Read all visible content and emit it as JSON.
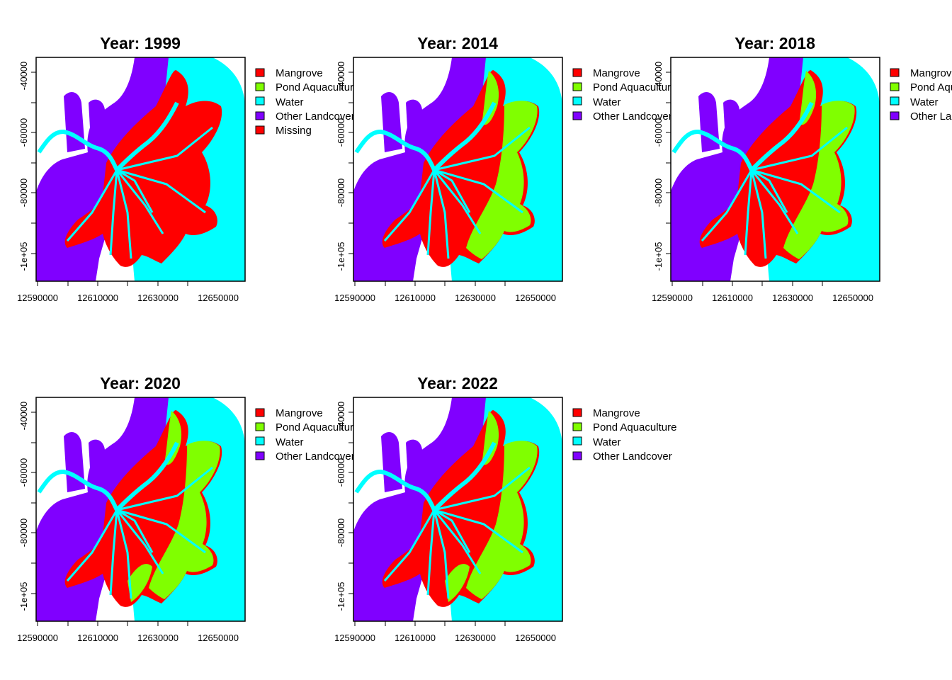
{
  "figure": {
    "x_ticks": [
      "12590000",
      "12610000",
      "12630000",
      "12650000"
    ],
    "y_ticks": [
      "-40000",
      "-60000",
      "-80000",
      "-1e+05"
    ],
    "panels": [
      {
        "title": "Year: 1999",
        "legend": [
          {
            "label": "Mangrove",
            "color": "#ff0000"
          },
          {
            "label": "Pond Aquaculture",
            "color": "#80ff00"
          },
          {
            "label": "Water",
            "color": "#00ffff"
          },
          {
            "label": "Other Landcover",
            "color": "#8000ff"
          },
          {
            "label": "Missing",
            "color": "#ff0000"
          }
        ]
      },
      {
        "title": "Year: 2014",
        "legend": [
          {
            "label": "Mangrove",
            "color": "#ff0000"
          },
          {
            "label": "Pond Aquaculture",
            "color": "#80ff00"
          },
          {
            "label": "Water",
            "color": "#00ffff"
          },
          {
            "label": "Other Landcover",
            "color": "#8000ff"
          }
        ]
      },
      {
        "title": "Year: 2018",
        "legend": [
          {
            "label": "Mangrove",
            "color": "#ff0000"
          },
          {
            "label": "Pond Aquaculture",
            "color": "#80ff00"
          },
          {
            "label": "Water",
            "color": "#00ffff"
          },
          {
            "label": "Other Landcover",
            "color": "#8000ff"
          }
        ]
      },
      {
        "title": "Year: 2020",
        "legend": [
          {
            "label": "Mangrove",
            "color": "#ff0000"
          },
          {
            "label": "Pond Aquaculture",
            "color": "#80ff00"
          },
          {
            "label": "Water",
            "color": "#00ffff"
          },
          {
            "label": "Other Landcover",
            "color": "#8000ff"
          }
        ]
      },
      {
        "title": "Year: 2022",
        "legend": [
          {
            "label": "Mangrove",
            "color": "#ff0000"
          },
          {
            "label": "Pond Aquaculture",
            "color": "#80ff00"
          },
          {
            "label": "Water",
            "color": "#00ffff"
          },
          {
            "label": "Other Landcover",
            "color": "#8000ff"
          }
        ]
      }
    ]
  }
}
